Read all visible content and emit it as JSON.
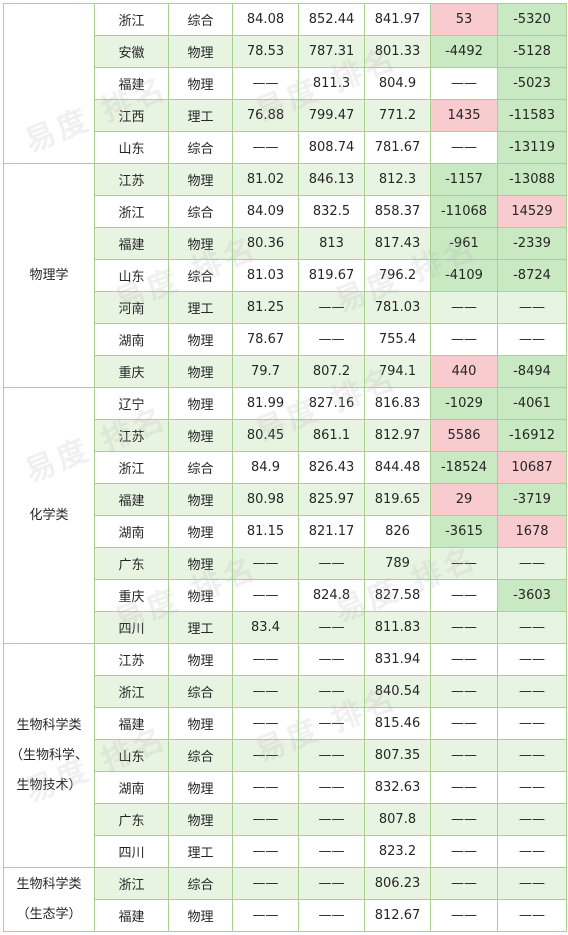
{
  "groups": [
    {
      "major": "",
      "rows": [
        {
          "province": "浙江",
          "subject": "综合",
          "score": "84.08",
          "v1": "852.44",
          "v2": "841.97",
          "d1": "53",
          "d2": "-5320",
          "d1c": "pink",
          "d2c": "green"
        },
        {
          "province": "安徽",
          "subject": "物理",
          "score": "78.53",
          "v1": "787.31",
          "v2": "801.33",
          "d1": "-4492",
          "d2": "-5128",
          "d1c": "green",
          "d2c": "green"
        },
        {
          "province": "福建",
          "subject": "物理",
          "score": "——",
          "v1": "811.3",
          "v2": "804.9",
          "d1": "——",
          "d2": "-5023",
          "d1c": "",
          "d2c": "green"
        },
        {
          "province": "江西",
          "subject": "理工",
          "score": "76.88",
          "v1": "799.47",
          "v2": "771.2",
          "d1": "1435",
          "d2": "-11583",
          "d1c": "pink",
          "d2c": "green"
        },
        {
          "province": "山东",
          "subject": "综合",
          "score": "——",
          "v1": "808.74",
          "v2": "781.67",
          "d1": "——",
          "d2": "-13119",
          "d1c": "",
          "d2c": "green"
        }
      ]
    },
    {
      "major": "物理学",
      "rows": [
        {
          "province": "江苏",
          "subject": "物理",
          "score": "81.02",
          "v1": "846.13",
          "v2": "812.3",
          "d1": "-1157",
          "d2": "-13088",
          "d1c": "green",
          "d2c": "green"
        },
        {
          "province": "浙江",
          "subject": "综合",
          "score": "84.09",
          "v1": "832.5",
          "v2": "858.37",
          "d1": "-11068",
          "d2": "14529",
          "d1c": "green",
          "d2c": "pink"
        },
        {
          "province": "福建",
          "subject": "物理",
          "score": "80.36",
          "v1": "813",
          "v2": "817.43",
          "d1": "-961",
          "d2": "-2339",
          "d1c": "green",
          "d2c": "green"
        },
        {
          "province": "山东",
          "subject": "综合",
          "score": "81.03",
          "v1": "819.67",
          "v2": "796.2",
          "d1": "-4109",
          "d2": "-8724",
          "d1c": "green",
          "d2c": "green"
        },
        {
          "province": "河南",
          "subject": "理工",
          "score": "81.25",
          "v1": "——",
          "v2": "781.03",
          "d1": "——",
          "d2": "——",
          "d1c": "",
          "d2c": ""
        },
        {
          "province": "湖南",
          "subject": "物理",
          "score": "78.67",
          "v1": "——",
          "v2": "755.4",
          "d1": "——",
          "d2": "——",
          "d1c": "",
          "d2c": ""
        },
        {
          "province": "重庆",
          "subject": "物理",
          "score": "79.7",
          "v1": "807.2",
          "v2": "794.1",
          "d1": "440",
          "d2": "-8494",
          "d1c": "pink",
          "d2c": "green"
        }
      ]
    },
    {
      "major": "化学类",
      "rows": [
        {
          "province": "辽宁",
          "subject": "物理",
          "score": "81.99",
          "v1": "827.16",
          "v2": "816.83",
          "d1": "-1029",
          "d2": "-4061",
          "d1c": "green",
          "d2c": "green"
        },
        {
          "province": "江苏",
          "subject": "物理",
          "score": "80.45",
          "v1": "861.1",
          "v2": "812.97",
          "d1": "5586",
          "d2": "-16912",
          "d1c": "pink",
          "d2c": "green"
        },
        {
          "province": "浙江",
          "subject": "综合",
          "score": "84.9",
          "v1": "826.43",
          "v2": "844.48",
          "d1": "-18524",
          "d2": "10687",
          "d1c": "green",
          "d2c": "pink"
        },
        {
          "province": "福建",
          "subject": "物理",
          "score": "80.98",
          "v1": "825.97",
          "v2": "819.65",
          "d1": "29",
          "d2": "-3719",
          "d1c": "pink",
          "d2c": "green"
        },
        {
          "province": "湖南",
          "subject": "物理",
          "score": "81.15",
          "v1": "821.17",
          "v2": "826",
          "d1": "-3615",
          "d2": "1678",
          "d1c": "green",
          "d2c": "pink"
        },
        {
          "province": "广东",
          "subject": "物理",
          "score": "——",
          "v1": "——",
          "v2": "789",
          "d1": "——",
          "d2": "——",
          "d1c": "",
          "d2c": ""
        },
        {
          "province": "重庆",
          "subject": "物理",
          "score": "——",
          "v1": "824.8",
          "v2": "827.58",
          "d1": "——",
          "d2": "-3603",
          "d1c": "",
          "d2c": "green"
        },
        {
          "province": "四川",
          "subject": "理工",
          "score": "83.4",
          "v1": "——",
          "v2": "811.83",
          "d1": "——",
          "d2": "——",
          "d1c": "",
          "d2c": ""
        }
      ]
    },
    {
      "major": "生物科学类（生物科学、生物技术）",
      "rows": [
        {
          "province": "江苏",
          "subject": "物理",
          "score": "——",
          "v1": "——",
          "v2": "831.94",
          "d1": "——",
          "d2": "——",
          "d1c": "",
          "d2c": ""
        },
        {
          "province": "浙江",
          "subject": "综合",
          "score": "——",
          "v1": "——",
          "v2": "840.54",
          "d1": "——",
          "d2": "——",
          "d1c": "",
          "d2c": ""
        },
        {
          "province": "福建",
          "subject": "物理",
          "score": "——",
          "v1": "——",
          "v2": "815.46",
          "d1": "——",
          "d2": "——",
          "d1c": "",
          "d2c": ""
        },
        {
          "province": "山东",
          "subject": "综合",
          "score": "——",
          "v1": "——",
          "v2": "807.35",
          "d1": "——",
          "d2": "——",
          "d1c": "",
          "d2c": ""
        },
        {
          "province": "湖南",
          "subject": "物理",
          "score": "——",
          "v1": "——",
          "v2": "832.63",
          "d1": "——",
          "d2": "——",
          "d1c": "",
          "d2c": ""
        },
        {
          "province": "广东",
          "subject": "物理",
          "score": "——",
          "v1": "——",
          "v2": "807.8",
          "d1": "——",
          "d2": "——",
          "d1c": "",
          "d2c": ""
        },
        {
          "province": "四川",
          "subject": "理工",
          "score": "——",
          "v1": "——",
          "v2": "823.2",
          "d1": "——",
          "d2": "——",
          "d1c": "",
          "d2c": ""
        }
      ]
    },
    {
      "major": "生物科学类（生态学）",
      "rows": [
        {
          "province": "浙江",
          "subject": "综合",
          "score": "——",
          "v1": "——",
          "v2": "806.23",
          "d1": "——",
          "d2": "——",
          "d1c": "",
          "d2c": ""
        },
        {
          "province": "福建",
          "subject": "物理",
          "score": "——",
          "v1": "——",
          "v2": "812.67",
          "d1": "——",
          "d2": "——",
          "d1c": "",
          "d2c": ""
        }
      ]
    }
  ],
  "colors": {
    "border": "#a9d18e",
    "stripe": "#e8f4e2",
    "pink": "#f8cbcf",
    "green": "#c9e9c2"
  },
  "watermark": "易度 排名"
}
